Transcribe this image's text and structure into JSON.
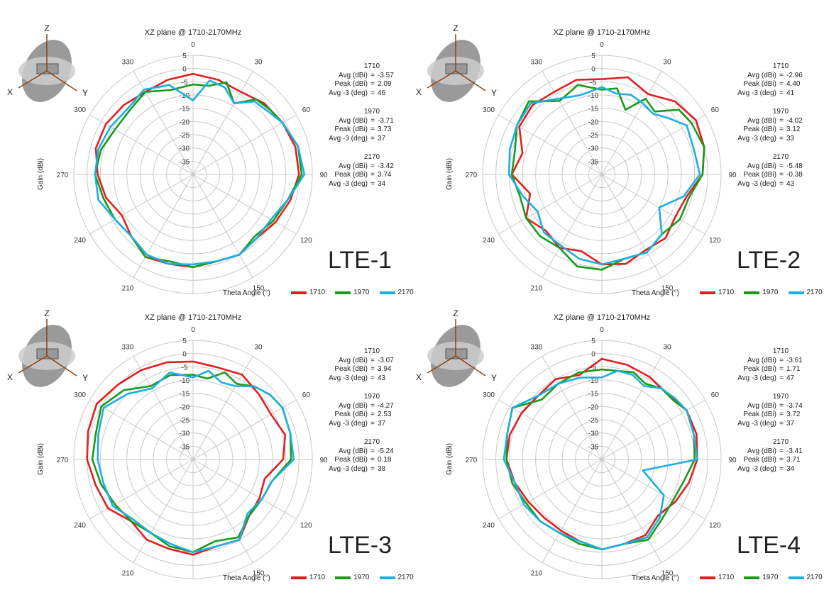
{
  "colors": {
    "s1710": "#e02020",
    "s1970": "#1a9a1a",
    "s2170": "#1eaee0",
    "grid": "#c8c8c8"
  },
  "axis_icon": {
    "z": "Z",
    "x": "X",
    "y": "Y"
  },
  "chart_data": [
    {
      "type": "polar-line",
      "title": "XZ plane @ 1710-2170MHz",
      "label": "LTE-1",
      "radial_label": "Gain (dBi)",
      "angular_label": "Theta Angle (°)",
      "r_ticks": [
        "5",
        "0",
        "-5",
        "-10",
        "-15",
        "-20",
        "-25",
        "-30",
        "-35"
      ],
      "theta_ticks": [
        "0",
        "30",
        "60",
        "90",
        "120",
        "150",
        "180",
        "210",
        "240",
        "270",
        "300",
        "330"
      ],
      "rlim": [
        -40,
        5
      ],
      "legend": [
        "1710",
        "1970",
        "2170"
      ],
      "stats": [
        {
          "freq": "1710",
          "avg": "-3.57",
          "peak": "2.09",
          "avg3": "46"
        },
        {
          "freq": "1970",
          "avg": "-3.71",
          "peak": "3.73",
          "avg3": "37"
        },
        {
          "freq": "2170",
          "avg": "-3.42",
          "peak": "3.74",
          "avg3": "34"
        }
      ],
      "series": [
        {
          "name": "1710",
          "theta": [
            0,
            15,
            30,
            45,
            60,
            75,
            90,
            105,
            120,
            135,
            150,
            165,
            180,
            195,
            210,
            225,
            240,
            255,
            270,
            285,
            300,
            315,
            330,
            345
          ],
          "r": [
            -2,
            -3,
            -4,
            -2,
            -1,
            0,
            0,
            -2,
            -4,
            -6,
            -5,
            -6,
            -5,
            -5,
            -4,
            -7,
            -9,
            -6,
            -4,
            -2,
            -2,
            -3,
            -4,
            -3
          ]
        },
        {
          "name": "1970",
          "theta": [
            0,
            10,
            20,
            30,
            40,
            50,
            60,
            75,
            90,
            105,
            120,
            135,
            150,
            165,
            180,
            195,
            210,
            225,
            240,
            255,
            270,
            285,
            300,
            315,
            330,
            345
          ],
          "r": [
            -6,
            -6,
            -3,
            -9,
            -3,
            -2,
            -1,
            1,
            1,
            -3,
            -5,
            -7,
            -5,
            -6,
            -5,
            -6,
            -4,
            -7,
            -6,
            -5,
            -3,
            -4,
            -6,
            -6,
            -4,
            -7
          ]
        },
        {
          "name": "2170",
          "theta": [
            0,
            10,
            20,
            30,
            40,
            50,
            60,
            75,
            90,
            105,
            120,
            135,
            150,
            165,
            180,
            195,
            210,
            225,
            240,
            255,
            270,
            285,
            300,
            315,
            330,
            345
          ],
          "r": [
            -12,
            -4,
            -5,
            -9,
            -4,
            -3,
            -1,
            1,
            2,
            -3,
            -6,
            -6,
            -5,
            -6,
            -6,
            -5,
            -5,
            -7,
            -6,
            -3,
            -3,
            -3,
            -4,
            -5,
            -3,
            -5
          ]
        }
      ]
    },
    {
      "type": "polar-line",
      "title": "XZ plane @ 1710-2170MHz",
      "label": "LTE-2",
      "radial_label": "Gain (dBi)",
      "angular_label": "Theta Angle (°)",
      "r_ticks": [
        "5",
        "0",
        "-5",
        "-10",
        "-15",
        "-20",
        "-25",
        "-30",
        "-35"
      ],
      "theta_ticks": [
        "0",
        "30",
        "60",
        "90",
        "120",
        "150",
        "180",
        "210",
        "240",
        "270",
        "300",
        "330"
      ],
      "rlim": [
        -40,
        5
      ],
      "legend": [
        "1710",
        "1970",
        "2170"
      ],
      "stats": [
        {
          "freq": "1710",
          "avg": "-2.96",
          "peak": "4.40",
          "avg3": "41"
        },
        {
          "freq": "1970",
          "avg": "-4.02",
          "peak": "3.12",
          "avg3": "33"
        },
        {
          "freq": "2170",
          "avg": "-5.48",
          "peak": "-0.38",
          "avg3": "43"
        }
      ],
      "series": [
        {
          "name": "1710",
          "theta": [
            0,
            15,
            30,
            45,
            60,
            75,
            90,
            105,
            120,
            135,
            150,
            165,
            180,
            195,
            210,
            225,
            240,
            255,
            270,
            285,
            300,
            315,
            330,
            345
          ],
          "r": [
            -4,
            -2,
            -5,
            -1,
            1,
            0,
            -2,
            -7,
            -8,
            -6,
            -7,
            -5,
            -6,
            -10,
            -8,
            -10,
            -7,
            -12,
            -6,
            -9,
            -4,
            -3,
            -4,
            -3
          ]
        },
        {
          "name": "1970",
          "theta": [
            0,
            10,
            20,
            30,
            40,
            50,
            60,
            75,
            90,
            105,
            120,
            135,
            150,
            165,
            180,
            195,
            210,
            225,
            240,
            255,
            270,
            285,
            300,
            315,
            330,
            345
          ],
          "r": [
            -8,
            -7,
            -14,
            -7,
            -9,
            -2,
            -1,
            0,
            -2,
            -6,
            -6,
            -8,
            -6,
            -7,
            -4,
            -4,
            -8,
            -7,
            -7,
            -8,
            -6,
            -6,
            -3,
            -1,
            -8,
            -5
          ]
        },
        {
          "name": "2170",
          "theta": [
            0,
            10,
            20,
            30,
            40,
            50,
            60,
            75,
            90,
            105,
            120,
            135,
            150,
            165,
            180,
            195,
            210,
            225,
            240,
            255,
            270,
            285,
            300,
            315,
            330,
            345
          ],
          "r": [
            -7,
            -9,
            -8,
            -9,
            -10,
            -7,
            -3,
            -4,
            -3,
            -8,
            -15,
            -8,
            -6,
            -7,
            -6,
            -7,
            -9,
            -9,
            -12,
            -9,
            -5,
            -4,
            -3,
            -2,
            -7,
            -9
          ]
        }
      ]
    },
    {
      "type": "polar-line",
      "title": "XZ plane @ 1710-2170MHz",
      "label": "LTE-3",
      "radial_label": "Gain (dBi)",
      "angular_label": "Theta Angle (°)",
      "r_ticks": [
        "5",
        "0",
        "-5",
        "-10",
        "-15",
        "-20",
        "-25",
        "-30",
        "-35"
      ],
      "theta_ticks": [
        "0",
        "30",
        "60",
        "90",
        "120",
        "150",
        "180",
        "210",
        "240",
        "270",
        "300",
        "330"
      ],
      "rlim": [
        -40,
        5
      ],
      "legend": [
        "1710",
        "1970",
        "2170"
      ],
      "stats": [
        {
          "freq": "1710",
          "avg": "-3.07",
          "peak": "3.94",
          "avg3": "43"
        },
        {
          "freq": "1970",
          "avg": "-4.27",
          "peak": "2.53",
          "avg3": "37"
        },
        {
          "freq": "2170",
          "avg": "-5.24",
          "peak": "0.18",
          "avg3": "38"
        }
      ],
      "series": [
        {
          "name": "1710",
          "theta": [
            0,
            15,
            30,
            45,
            60,
            75,
            90,
            105,
            120,
            135,
            150,
            165,
            180,
            195,
            210,
            225,
            240,
            255,
            270,
            285,
            300,
            315,
            330,
            345
          ],
          "r": [
            -3,
            -4,
            -3,
            -5,
            -6,
            -4,
            -6,
            -12,
            -11,
            -10,
            -5,
            -6,
            -4,
            -5,
            -5,
            -7,
            -3,
            -2,
            0,
            1,
            2,
            0,
            -1,
            -2
          ]
        },
        {
          "name": "1970",
          "theta": [
            0,
            10,
            20,
            30,
            40,
            50,
            60,
            75,
            90,
            105,
            120,
            135,
            150,
            165,
            180,
            195,
            210,
            225,
            240,
            255,
            270,
            285,
            300,
            315,
            330,
            345
          ],
          "r": [
            -8,
            -9,
            -5,
            -7,
            -4,
            -2,
            -1,
            -2,
            -3,
            -9,
            -10,
            -10,
            -6,
            -8,
            -5,
            -6,
            -8,
            -7,
            -6,
            -4,
            -2,
            -2,
            0,
            -3,
            -8,
            -7
          ]
        },
        {
          "name": "2170",
          "theta": [
            0,
            10,
            20,
            30,
            40,
            50,
            60,
            75,
            90,
            105,
            120,
            135,
            150,
            165,
            180,
            195,
            210,
            225,
            240,
            255,
            270,
            285,
            300,
            315,
            330,
            345
          ],
          "r": [
            -9,
            -6,
            -9,
            -8,
            -4,
            -2,
            -1,
            -2,
            -2,
            -9,
            -10,
            -11,
            -5,
            -6,
            -5,
            -7,
            -8,
            -8,
            -5,
            -5,
            -4,
            -3,
            -1,
            -5,
            -9,
            -6
          ]
        }
      ]
    },
    {
      "type": "polar-line",
      "title": "XZ plane @ 1710-2170MHz",
      "label": "LTE-4",
      "radial_label": "Gain (dBi)",
      "angular_label": "Theta Angle (°)",
      "r_ticks": [
        "5",
        "0",
        "-5",
        "-10",
        "-15",
        "-20",
        "-25",
        "-30",
        "-35"
      ],
      "theta_ticks": [
        "0",
        "30",
        "60",
        "90",
        "120",
        "150",
        "180",
        "210",
        "240",
        "270",
        "300",
        "330"
      ],
      "rlim": [
        -40,
        5
      ],
      "legend": [
        "1710",
        "1970",
        "2170"
      ],
      "stats": [
        {
          "freq": "1710",
          "avg": "-3.61",
          "peak": "1.71",
          "avg3": "47"
        },
        {
          "freq": "1970",
          "avg": "-3.74",
          "peak": "3.72",
          "avg3": "37"
        },
        {
          "freq": "2170",
          "avg": "-3.41",
          "peak": "3.71",
          "avg3": "34"
        }
      ],
      "series": [
        {
          "name": "1710",
          "theta": [
            0,
            15,
            30,
            45,
            60,
            75,
            90,
            105,
            120,
            135,
            150,
            165,
            180,
            195,
            210,
            225,
            240,
            255,
            270,
            285,
            300,
            315,
            330,
            345
          ],
          "r": [
            -2,
            -3,
            -4,
            -5,
            -3,
            -3,
            -4,
            -6,
            -8,
            -10,
            -7,
            -7,
            -6,
            -8,
            -9,
            -9,
            -8,
            -6,
            -4,
            -4,
            -5,
            -6,
            -5,
            -7
          ]
        },
        {
          "name": "1970",
          "theta": [
            0,
            10,
            20,
            30,
            40,
            50,
            60,
            75,
            90,
            105,
            120,
            135,
            150,
            165,
            180,
            195,
            210,
            225,
            240,
            255,
            270,
            285,
            300,
            315,
            330,
            345
          ],
          "r": [
            -6,
            -6,
            -5,
            -7,
            -5,
            -5,
            -3,
            -4,
            -5,
            -8,
            -9,
            -8,
            -5,
            -7,
            -6,
            -7,
            -8,
            -7,
            -7,
            -5,
            -4,
            -3,
            -1,
            -8,
            -7,
            -6
          ]
        },
        {
          "name": "2170",
          "theta": [
            0,
            10,
            20,
            30,
            40,
            50,
            60,
            75,
            90,
            105,
            120,
            135,
            150,
            165,
            180,
            195,
            210,
            225,
            240,
            255,
            270,
            285,
            300,
            315,
            330,
            345
          ],
          "r": [
            -9,
            -6,
            -6,
            -8,
            -5,
            -4,
            -3,
            -4,
            -4,
            -24,
            -13,
            -9,
            -6,
            -7,
            -6,
            -8,
            -8,
            -7,
            -6,
            -6,
            -3,
            -3,
            -1,
            -6,
            -7,
            -8
          ]
        }
      ]
    }
  ]
}
